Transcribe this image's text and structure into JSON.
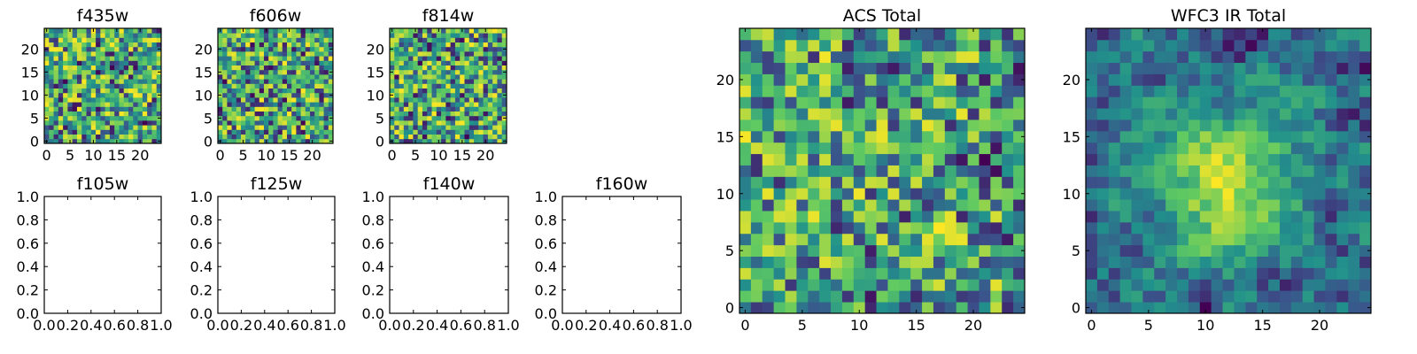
{
  "chart_data": [
    {
      "type": "heatmap",
      "title": "f435w",
      "xticks": [
        0,
        5,
        10,
        15,
        20
      ],
      "yticks": [
        0,
        5,
        10,
        15,
        20
      ],
      "xlim": [
        -0.5,
        24.5
      ],
      "ylim": [
        -0.5,
        24.5
      ],
      "grid_size": 25,
      "seed": 11,
      "smooth": 0,
      "colormap": "viridis"
    },
    {
      "type": "heatmap",
      "title": "f606w",
      "xticks": [
        0,
        5,
        10,
        15,
        20
      ],
      "yticks": [
        0,
        5,
        10,
        15,
        20
      ],
      "xlim": [
        -0.5,
        24.5
      ],
      "ylim": [
        -0.5,
        24.5
      ],
      "grid_size": 25,
      "seed": 23,
      "smooth": 0,
      "colormap": "viridis"
    },
    {
      "type": "heatmap",
      "title": "f814w",
      "xticks": [
        0,
        5,
        10,
        15,
        20
      ],
      "yticks": [
        0,
        5,
        10,
        15,
        20
      ],
      "xlim": [
        -0.5,
        24.5
      ],
      "ylim": [
        -0.5,
        24.5
      ],
      "grid_size": 25,
      "seed": 37,
      "smooth": 0,
      "colormap": "viridis"
    },
    {
      "type": "empty",
      "title": "f105w",
      "xticks": [
        "0.0",
        "0.2",
        "0.4",
        "0.6",
        "0.8",
        "1.0"
      ],
      "yticks": [
        "0.0",
        "0.2",
        "0.4",
        "0.6",
        "0.8",
        "1.0"
      ],
      "xlim": [
        0,
        1
      ],
      "ylim": [
        0,
        1
      ]
    },
    {
      "type": "empty",
      "title": "f125w",
      "xticks": [
        "0.0",
        "0.2",
        "0.4",
        "0.6",
        "0.8",
        "1.0"
      ],
      "yticks": [
        "0.0",
        "0.2",
        "0.4",
        "0.6",
        "0.8",
        "1.0"
      ],
      "xlim": [
        0,
        1
      ],
      "ylim": [
        0,
        1
      ]
    },
    {
      "type": "empty",
      "title": "f140w",
      "xticks": [
        "0.0",
        "0.2",
        "0.4",
        "0.6",
        "0.8",
        "1.0"
      ],
      "yticks": [
        "0.0",
        "0.2",
        "0.4",
        "0.6",
        "0.8",
        "1.0"
      ],
      "xlim": [
        0,
        1
      ],
      "ylim": [
        0,
        1
      ]
    },
    {
      "type": "empty",
      "title": "f160w",
      "xticks": [
        "0.0",
        "0.2",
        "0.4",
        "0.6",
        "0.8",
        "1.0"
      ],
      "yticks": [
        "0.0",
        "0.2",
        "0.4",
        "0.6",
        "0.8",
        "1.0"
      ],
      "xlim": [
        0,
        1
      ],
      "ylim": [
        0,
        1
      ]
    },
    {
      "type": "heatmap",
      "title": "ACS Total",
      "xticks": [
        0,
        5,
        10,
        15,
        20
      ],
      "yticks": [
        0,
        5,
        10,
        15,
        20
      ],
      "xlim": [
        -0.5,
        24.5
      ],
      "ylim": [
        -0.5,
        24.5
      ],
      "grid_size": 25,
      "seed": 53,
      "smooth": 0.15,
      "colormap": "viridis"
    },
    {
      "type": "heatmap",
      "title": "WFC3 IR Total",
      "xticks": [
        0,
        5,
        10,
        15,
        20
      ],
      "yticks": [
        0,
        5,
        10,
        15,
        20
      ],
      "xlim": [
        -0.5,
        24.5
      ],
      "ylim": [
        -0.5,
        24.5
      ],
      "grid_size": 25,
      "seed": 71,
      "smooth": 0.55,
      "colormap": "viridis",
      "bright_center": [
        12,
        11
      ]
    }
  ],
  "colors": {
    "viridis": [
      "#440154",
      "#3b528b",
      "#21918c",
      "#5ec962",
      "#fde725"
    ],
    "axes": "#000000"
  }
}
